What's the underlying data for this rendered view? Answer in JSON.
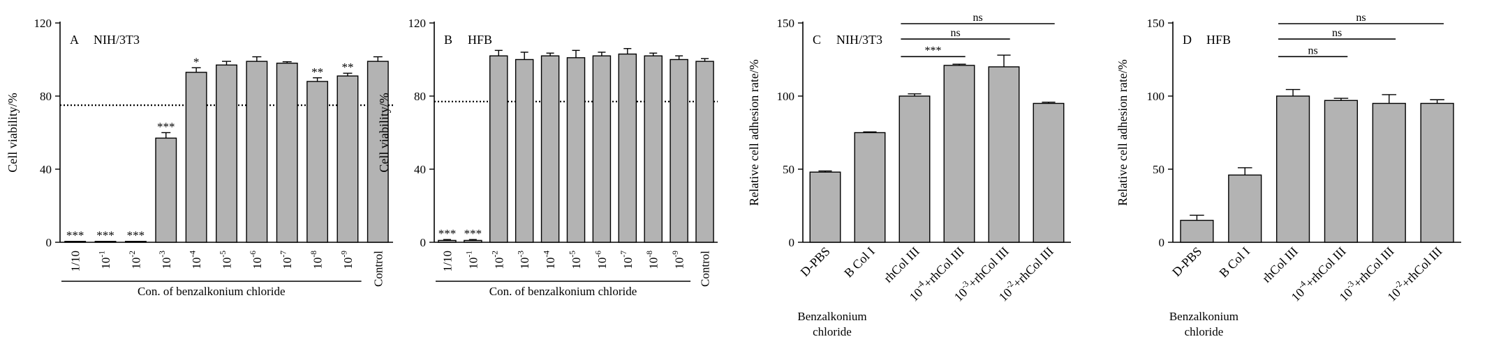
{
  "chart_data": [
    {
      "type": "bar",
      "panel": "A",
      "title": "NIH/3T3",
      "ylabel": "Cell viability/%",
      "ylim": [
        0,
        120
      ],
      "yticks": [
        "0",
        "40",
        "80",
        "120"
      ],
      "threshold": 75,
      "group_label": "Con. of benzalkonium chloride",
      "categories": [
        {
          "base": "1/10",
          "exp": ""
        },
        {
          "base": "10",
          "exp": "-1"
        },
        {
          "base": "10",
          "exp": "-2"
        },
        {
          "base": "10",
          "exp": "-3"
        },
        {
          "base": "10",
          "exp": "-4"
        },
        {
          "base": "10",
          "exp": "-5"
        },
        {
          "base": "10",
          "exp": "-6"
        },
        {
          "base": "10",
          "exp": "-7"
        },
        {
          "base": "10",
          "exp": "-8"
        },
        {
          "base": "10",
          "exp": "-9"
        },
        {
          "base": "Control",
          "exp": ""
        }
      ],
      "values": [
        0.5,
        0.5,
        0.5,
        57,
        93,
        97,
        99,
        98,
        88,
        91,
        99
      ],
      "errors": [
        0,
        0,
        0,
        3,
        2.5,
        2,
        2.5,
        0.8,
        2,
        1.5,
        2.5
      ],
      "significance": [
        "***",
        "***",
        "***",
        "***",
        "*",
        "",
        "",
        "",
        "**",
        "**",
        ""
      ]
    },
    {
      "type": "bar",
      "panel": "B",
      "title": "HFB",
      "ylabel": "Cell viability/%",
      "ylim": [
        0,
        120
      ],
      "yticks": [
        "0",
        "40",
        "80",
        "120"
      ],
      "threshold": 77,
      "group_label": "Con. of benzalkonium chloride",
      "categories": [
        {
          "base": "1/10",
          "exp": ""
        },
        {
          "base": "10",
          "exp": "-1"
        },
        {
          "base": "10",
          "exp": "-2"
        },
        {
          "base": "10",
          "exp": "-3"
        },
        {
          "base": "10",
          "exp": "-4"
        },
        {
          "base": "10",
          "exp": "-5"
        },
        {
          "base": "10",
          "exp": "-6"
        },
        {
          "base": "10",
          "exp": "-7"
        },
        {
          "base": "10",
          "exp": "-8"
        },
        {
          "base": "10",
          "exp": "-9"
        },
        {
          "base": "Control",
          "exp": ""
        }
      ],
      "values": [
        1,
        1,
        102,
        100,
        102,
        101,
        102,
        103,
        102,
        100,
        99
      ],
      "errors": [
        0.5,
        0.5,
        3,
        4,
        1.5,
        4,
        2,
        3,
        1.5,
        2,
        1.5
      ],
      "significance": [
        "***",
        "***",
        "",
        "",
        "",
        "",
        "",
        "",
        "",
        "",
        ""
      ]
    },
    {
      "type": "bar",
      "panel": "C",
      "title": "NIH/3T3",
      "ylabel": "Relative cell adhesion rate/%",
      "ylim": [
        0,
        150
      ],
      "yticks": [
        "0",
        "50",
        "100",
        "150"
      ],
      "group_label": "Benzalkonium chloride",
      "categories": [
        {
          "base": "D-PBS",
          "exp": "",
          "suffix": ""
        },
        {
          "base": "B Col I",
          "exp": "",
          "suffix": ""
        },
        {
          "base": "rhCol III",
          "exp": "",
          "suffix": ""
        },
        {
          "base": "10",
          "exp": "-4",
          "suffix": "+rhCol III"
        },
        {
          "base": "10",
          "exp": "-3",
          "suffix": "+rhCol III"
        },
        {
          "base": "10",
          "exp": "-2",
          "suffix": "+rhCol III"
        }
      ],
      "values": [
        48,
        75,
        100,
        121,
        120,
        95
      ],
      "errors": [
        0.8,
        0.5,
        1.5,
        0.8,
        8,
        0.8
      ],
      "comparisons": [
        {
          "from": 2,
          "to": 3,
          "label": "***"
        },
        {
          "from": 2,
          "to": 4,
          "label": "ns"
        },
        {
          "from": 2,
          "to": 5,
          "label": "ns"
        }
      ]
    },
    {
      "type": "bar",
      "panel": "D",
      "title": "HFB",
      "ylabel": "Relative cell adhesion rate/%",
      "ylim": [
        0,
        150
      ],
      "yticks": [
        "0",
        "50",
        "100",
        "150"
      ],
      "group_label": "Benzalkonium chloride",
      "categories": [
        {
          "base": "D-PBS",
          "exp": "",
          "suffix": ""
        },
        {
          "base": "B Col I",
          "exp": "",
          "suffix": ""
        },
        {
          "base": "rhCol III",
          "exp": "",
          "suffix": ""
        },
        {
          "base": "10",
          "exp": "-4",
          "suffix": "+rhCol III"
        },
        {
          "base": "10",
          "exp": "-3",
          "suffix": "+rhCol III"
        },
        {
          "base": "10",
          "exp": "-2",
          "suffix": "+rhCol III"
        }
      ],
      "values": [
        15,
        46,
        100,
        97,
        95,
        95
      ],
      "errors": [
        3.5,
        5,
        4.5,
        1.5,
        6,
        2.5
      ],
      "comparisons": [
        {
          "from": 2,
          "to": 3,
          "label": "ns"
        },
        {
          "from": 2,
          "to": 4,
          "label": "ns"
        },
        {
          "from": 2,
          "to": 5,
          "label": "ns"
        }
      ]
    }
  ]
}
